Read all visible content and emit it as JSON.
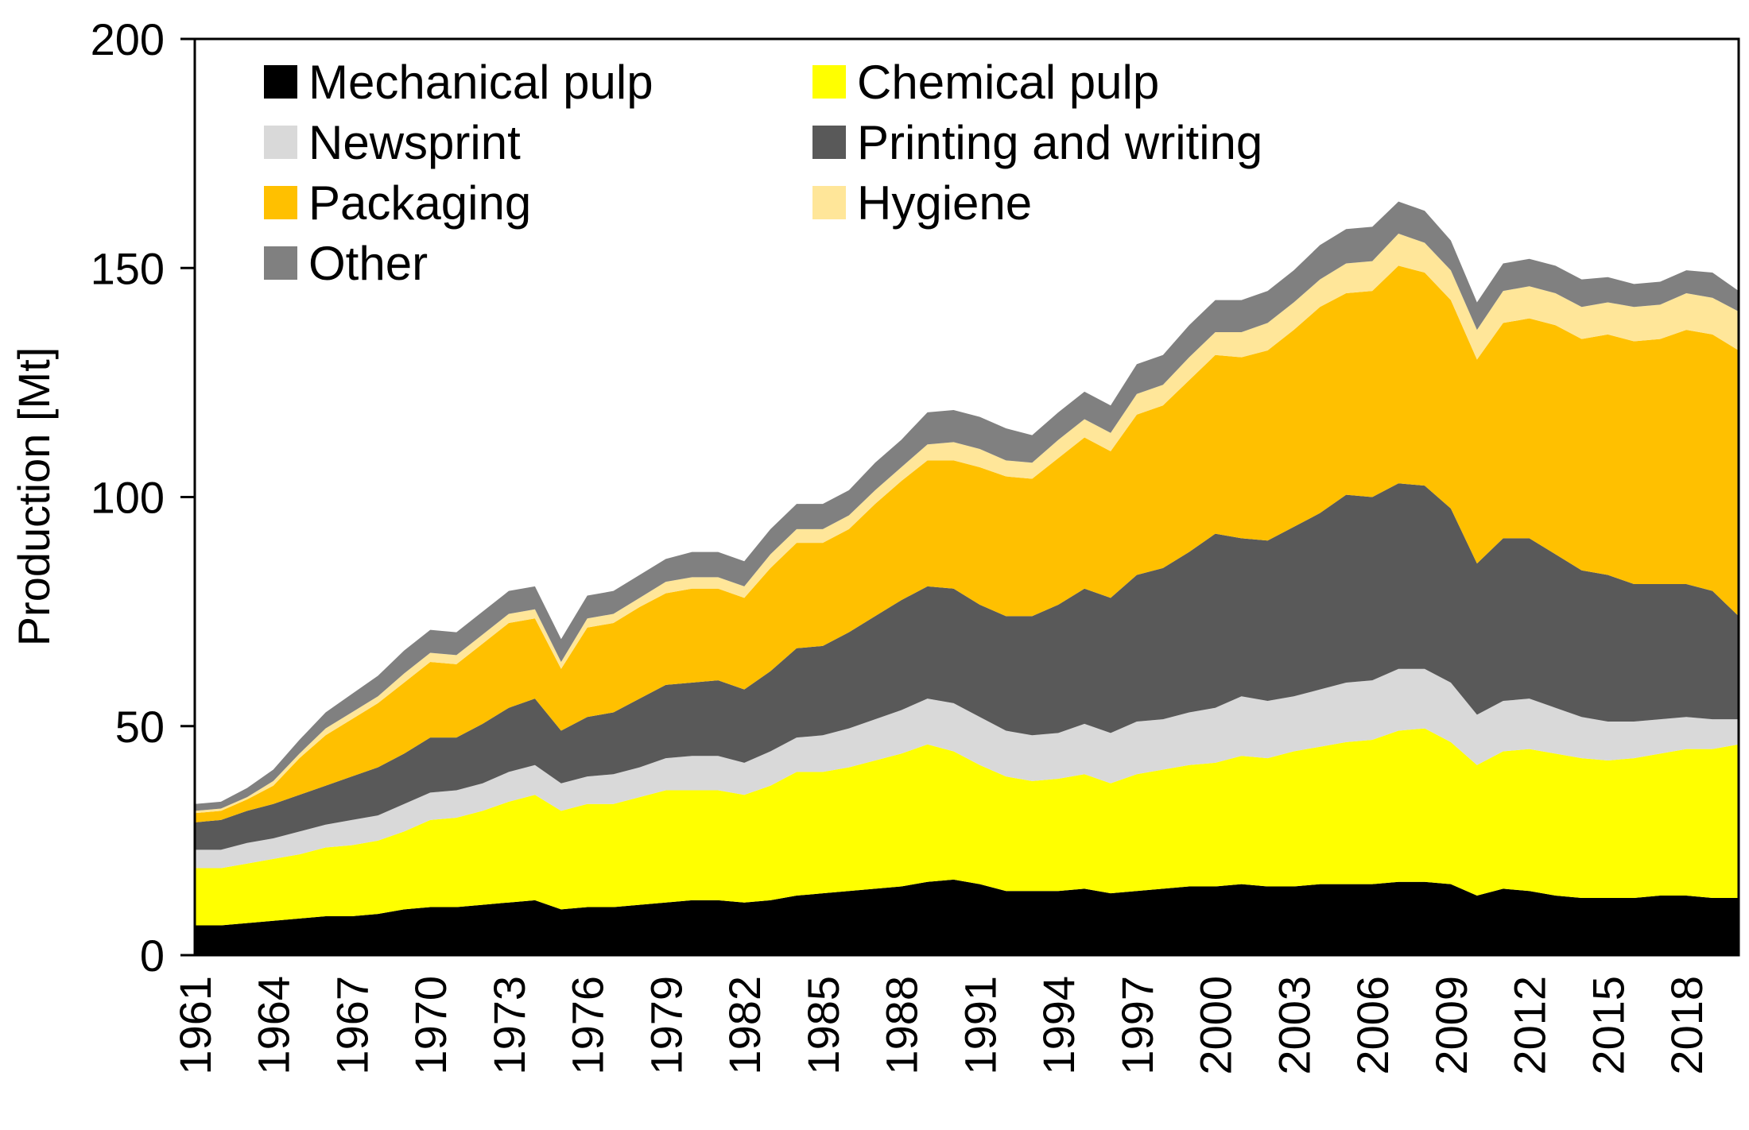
{
  "chart_data": {
    "type": "area",
    "stacked": true,
    "title": "",
    "xlabel": "",
    "ylabel": "Production [Mt]",
    "ylim": [
      0,
      200
    ],
    "yticks": [
      0,
      50,
      100,
      150,
      200
    ],
    "x_start": 1961,
    "x_end": 2020,
    "xtick_labels": [
      "1961",
      "1964",
      "1967",
      "1970",
      "1973",
      "1976",
      "1979",
      "1982",
      "1985",
      "1988",
      "1991",
      "1994",
      "1997",
      "2000",
      "2003",
      "2006",
      "2009",
      "2012",
      "2015",
      "2018"
    ],
    "legend_position": "top-left",
    "series": [
      {
        "name": "Mechanical pulp",
        "color": "#000000",
        "values": [
          6.5,
          6.5,
          7,
          7.5,
          8,
          8.5,
          8.5,
          9,
          10,
          10.5,
          10.5,
          11,
          11.5,
          12,
          10,
          10.5,
          10.5,
          11,
          11.5,
          12,
          12,
          11.5,
          12,
          13,
          13.5,
          14,
          14.5,
          15,
          16,
          16.5,
          15.5,
          14,
          14,
          14,
          14.5,
          13.5,
          14,
          14.5,
          15,
          15,
          15.5,
          15,
          15,
          15.5,
          15.5,
          15.5,
          16,
          16,
          15.5,
          13,
          14.5,
          14,
          13,
          12.5,
          12.5,
          12.5,
          13,
          13,
          12.5,
          12.5
        ]
      },
      {
        "name": "Chemical pulp",
        "color": "#FFFF00",
        "values": [
          12.5,
          12.5,
          13,
          13.5,
          14,
          15,
          15.5,
          16,
          17,
          19,
          19.5,
          20.5,
          22,
          23,
          21.5,
          22.5,
          22.5,
          23.5,
          24.5,
          24,
          24,
          23.5,
          25,
          27,
          26.5,
          27,
          28,
          29,
          30,
          28,
          26,
          25,
          24,
          24.5,
          25,
          24,
          25.5,
          26,
          26.5,
          27,
          28,
          28,
          29.5,
          30,
          31,
          31.5,
          33,
          33.5,
          31,
          28.5,
          30,
          31,
          31,
          30.5,
          30,
          30.5,
          31,
          32,
          32.5,
          33.5
        ]
      },
      {
        "name": "Newsprint",
        "color": "#D9D9D9",
        "values": [
          4,
          4,
          4.5,
          4.5,
          5,
          5,
          5.5,
          5.5,
          6,
          6,
          6,
          6,
          6.5,
          6.5,
          6,
          6,
          6.5,
          6.5,
          7,
          7.5,
          7.5,
          7,
          7.5,
          7.5,
          8,
          8.5,
          9,
          9.5,
          10,
          10.5,
          10.5,
          10,
          10,
          10,
          11,
          11,
          11.5,
          11,
          11.5,
          12,
          13,
          12.5,
          12,
          12.5,
          13,
          13,
          13.5,
          13,
          13,
          11,
          11,
          11,
          10,
          9,
          8.5,
          8,
          7.5,
          7,
          6.5,
          5.5
        ]
      },
      {
        "name": "Printing and writing",
        "color": "#595959",
        "values": [
          6,
          6.5,
          7,
          7.5,
          8,
          8.5,
          9.5,
          10.5,
          11,
          12,
          11.5,
          13,
          14,
          14.5,
          11.5,
          13,
          13.5,
          15,
          16,
          16,
          16.5,
          16,
          17.5,
          19.5,
          19.5,
          21,
          22.5,
          24,
          24.5,
          25,
          24.5,
          25,
          26,
          28,
          29.5,
          29.5,
          32,
          33,
          35,
          38,
          34.5,
          35,
          37,
          38.5,
          41,
          40,
          40.5,
          40,
          38,
          33,
          35.5,
          35,
          33.5,
          32,
          32,
          30,
          29.5,
          29,
          28,
          22.5
        ]
      },
      {
        "name": "Packaging",
        "color": "#FFC000",
        "values": [
          2,
          2,
          2.5,
          4,
          8,
          11,
          12.5,
          14,
          15.5,
          16.5,
          16,
          17.5,
          18.5,
          17.5,
          13.5,
          19.5,
          19.5,
          20,
          20,
          20.5,
          20,
          20,
          22.5,
          23,
          22.5,
          22.5,
          24.5,
          26,
          27.5,
          28,
          30,
          30.5,
          30,
          32,
          33,
          32,
          35,
          35.5,
          37.5,
          39,
          39.5,
          41.5,
          43,
          45,
          44,
          45,
          47.5,
          46.5,
          45.5,
          44.5,
          47,
          48,
          50,
          50.5,
          52.5,
          53,
          53.5,
          55.5,
          56,
          58
        ]
      },
      {
        "name": "Hygiene",
        "color": "#FFE699",
        "values": [
          0.5,
          0.5,
          0.5,
          1,
          1,
          1.5,
          1.5,
          1.5,
          2,
          2,
          2,
          2,
          2,
          2,
          1.5,
          2,
          2,
          2,
          2.5,
          2.5,
          2.5,
          2.5,
          3,
          3,
          3,
          3,
          3,
          3,
          3.5,
          4,
          4,
          3.5,
          3.5,
          4,
          4,
          4,
          4.5,
          4.5,
          5,
          5,
          5.5,
          6,
          6,
          6,
          6.5,
          6.5,
          7,
          6.5,
          6.5,
          6.5,
          7,
          7,
          7,
          7,
          7,
          7.5,
          7.5,
          8,
          8,
          8.5
        ]
      },
      {
        "name": "Other",
        "color": "#808080",
        "values": [
          1.5,
          1.5,
          2,
          2.5,
          3,
          3.5,
          4,
          4.5,
          5,
          5,
          5,
          5,
          5,
          5,
          5,
          5,
          5,
          5,
          5,
          5.5,
          5.5,
          5.5,
          5.5,
          5.5,
          5.5,
          5.5,
          6,
          6,
          7,
          7,
          7,
          7,
          6,
          6,
          6,
          6,
          6.5,
          6.5,
          7,
          7,
          7,
          7,
          7,
          7.5,
          7.5,
          7.5,
          7,
          7,
          6.5,
          6,
          6,
          6,
          6,
          6,
          5.5,
          5,
          5,
          5,
          5.5,
          4.5
        ]
      }
    ]
  }
}
